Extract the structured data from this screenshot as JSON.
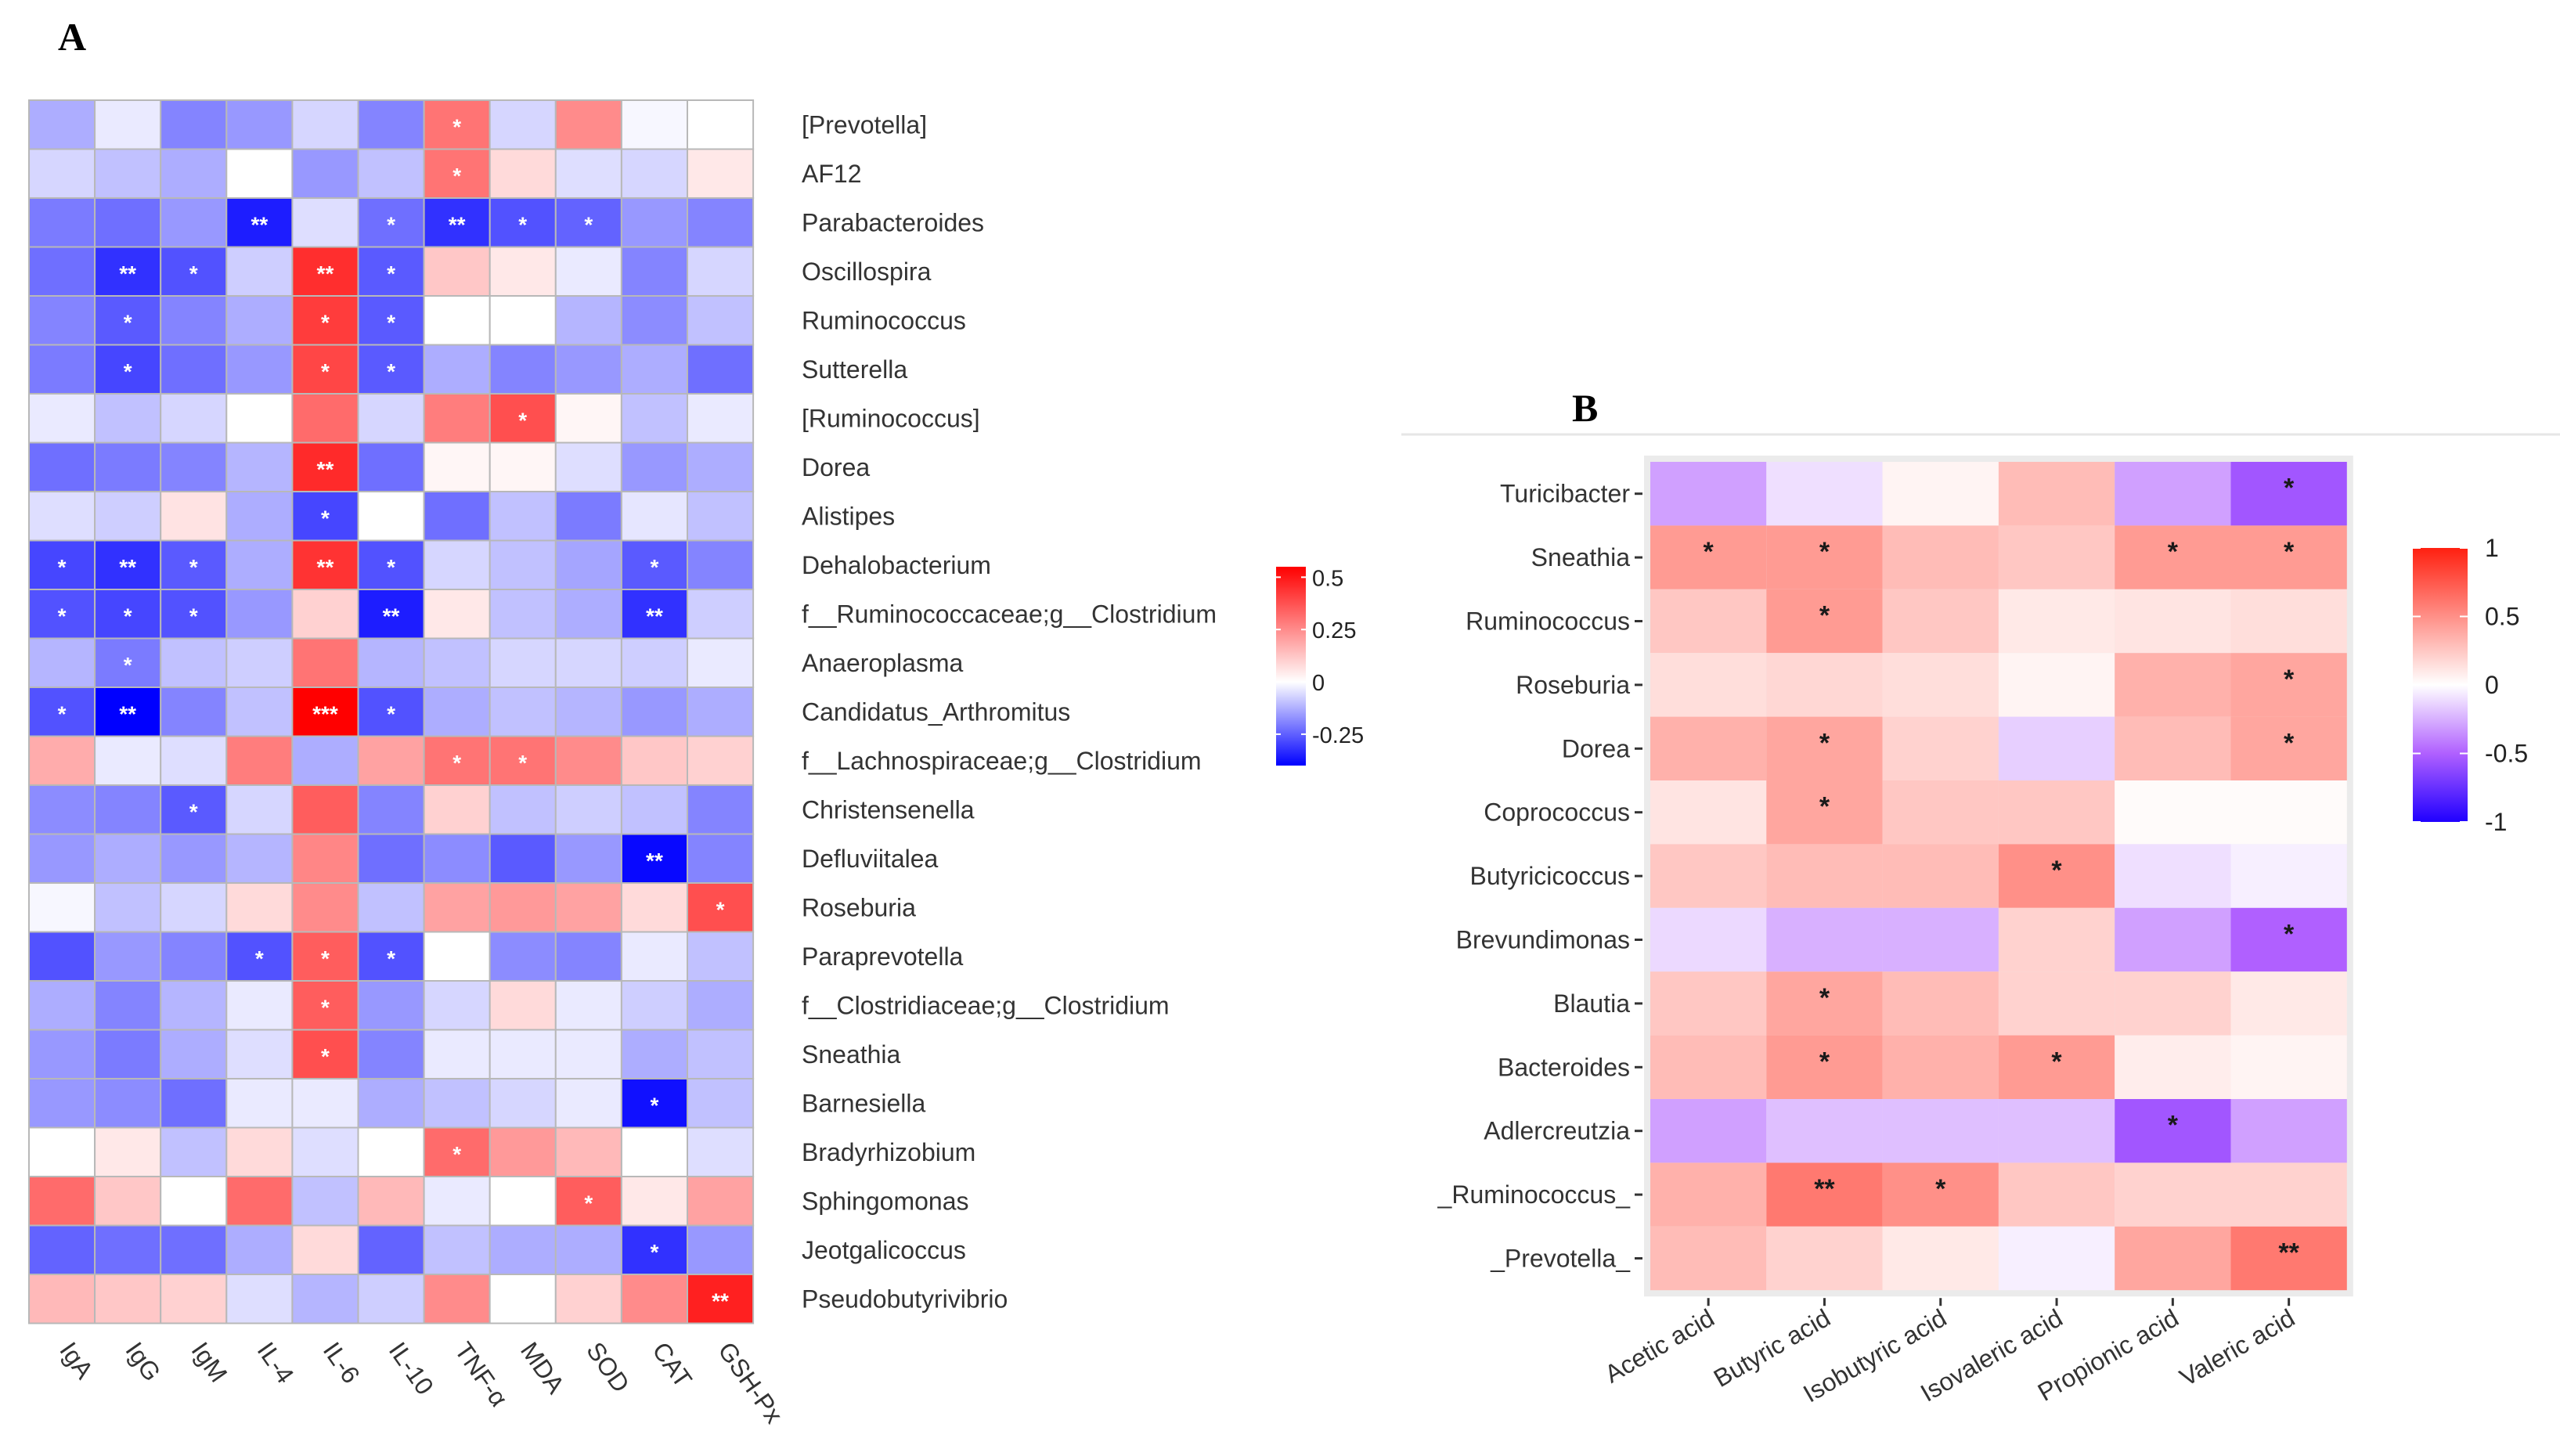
{
  "panels": [
    "A",
    "B"
  ],
  "chart_data": [
    {
      "type": "heatmap",
      "panel": "A",
      "x_labels": [
        "IgA",
        "IgG",
        "IgM",
        "IL-4",
        "IL-6",
        "IL-10",
        "TNF-α",
        "MDA",
        "SOD",
        "CAT",
        "GSH-Px"
      ],
      "y_labels": [
        "[Prevotella]",
        "AF12",
        "Parabacteroides",
        "Oscillospira",
        "Ruminococcus",
        "Sutterella",
        "[Ruminococcus]",
        "Dorea",
        "Alistipes",
        "Dehalobacterium",
        "f__Ruminococcaceae;g__Clostridium",
        "Anaeroplasma",
        "Candidatus_Arthromitus",
        "f__Lachnospiraceae;g__Clostridium",
        "Christensenella",
        "Defluviitalea",
        "Roseburia",
        "Paraprevotella",
        "f__Clostridiaceae;g__Clostridium",
        "Sneathia",
        "Barnesiella",
        "Bradyrhizobium",
        "Sphingomonas",
        "Jeotgalicoccus",
        "Pseudobutyrivibrio"
      ],
      "values": [
        [
          -0.2,
          -0.05,
          -0.3,
          -0.25,
          -0.1,
          -0.3,
          0.3,
          -0.1,
          0.25,
          -0.02,
          0.0
        ],
        [
          -0.1,
          -0.15,
          -0.2,
          0.0,
          -0.25,
          -0.15,
          0.3,
          0.08,
          -0.08,
          -0.1,
          0.05
        ],
        [
          -0.32,
          -0.35,
          -0.25,
          -0.55,
          -0.08,
          -0.35,
          -0.5,
          -0.42,
          -0.38,
          -0.25,
          -0.3
        ],
        [
          -0.35,
          -0.5,
          -0.42,
          -0.12,
          0.45,
          -0.4,
          0.12,
          0.05,
          -0.05,
          -0.3,
          -0.1
        ],
        [
          -0.3,
          -0.4,
          -0.3,
          -0.2,
          0.42,
          -0.4,
          0.0,
          0.0,
          -0.18,
          -0.28,
          -0.15
        ],
        [
          -0.32,
          -0.45,
          -0.35,
          -0.25,
          0.4,
          -0.4,
          -0.2,
          -0.3,
          -0.25,
          -0.2,
          -0.35
        ],
        [
          -0.05,
          -0.15,
          -0.1,
          0.0,
          0.32,
          -0.1,
          0.28,
          0.38,
          0.02,
          -0.15,
          -0.05
        ],
        [
          -0.35,
          -0.32,
          -0.3,
          -0.18,
          0.46,
          -0.35,
          0.02,
          0.02,
          -0.08,
          -0.25,
          -0.2
        ],
        [
          -0.08,
          -0.12,
          0.06,
          -0.2,
          -0.45,
          0.0,
          -0.35,
          -0.15,
          -0.32,
          -0.06,
          -0.15
        ],
        [
          -0.45,
          -0.5,
          -0.4,
          -0.2,
          0.44,
          -0.42,
          -0.1,
          -0.15,
          -0.22,
          -0.4,
          -0.3
        ],
        [
          -0.42,
          -0.45,
          -0.42,
          -0.25,
          0.1,
          -0.55,
          0.05,
          -0.15,
          -0.2,
          -0.5,
          -0.12
        ],
        [
          -0.18,
          -0.32,
          -0.15,
          -0.12,
          0.3,
          -0.18,
          -0.15,
          -0.1,
          -0.1,
          -0.12,
          -0.05
        ],
        [
          -0.42,
          -0.62,
          -0.3,
          -0.15,
          0.68,
          -0.42,
          -0.2,
          -0.15,
          -0.18,
          -0.25,
          -0.2
        ],
        [
          0.18,
          -0.05,
          -0.08,
          0.28,
          -0.2,
          0.2,
          0.3,
          0.3,
          0.25,
          0.12,
          0.1
        ],
        [
          -0.28,
          -0.3,
          -0.4,
          -0.1,
          0.35,
          -0.3,
          0.1,
          -0.15,
          -0.12,
          -0.15,
          -0.3
        ],
        [
          -0.25,
          -0.2,
          -0.25,
          -0.18,
          0.26,
          -0.35,
          -0.28,
          -0.4,
          -0.25,
          -0.6,
          -0.3
        ],
        [
          -0.02,
          -0.15,
          -0.1,
          0.08,
          0.25,
          -0.15,
          0.2,
          0.22,
          0.2,
          0.08,
          0.38
        ],
        [
          -0.42,
          -0.25,
          -0.3,
          -0.42,
          0.35,
          -0.42,
          0.0,
          -0.28,
          -0.3,
          -0.05,
          -0.15
        ],
        [
          -0.2,
          -0.3,
          -0.18,
          -0.05,
          0.35,
          -0.25,
          -0.1,
          0.08,
          -0.05,
          -0.12,
          -0.2
        ],
        [
          -0.25,
          -0.32,
          -0.2,
          -0.08,
          0.38,
          -0.3,
          -0.05,
          -0.05,
          -0.05,
          -0.2,
          -0.15
        ],
        [
          -0.25,
          -0.28,
          -0.35,
          -0.05,
          -0.05,
          -0.2,
          -0.15,
          -0.1,
          -0.05,
          -0.58,
          -0.15
        ],
        [
          0.0,
          0.05,
          -0.15,
          0.08,
          -0.08,
          0.0,
          0.32,
          0.22,
          0.15,
          0.0,
          -0.08
        ],
        [
          0.32,
          0.12,
          0.0,
          0.32,
          -0.15,
          0.15,
          -0.05,
          0.0,
          0.35,
          0.05,
          0.2
        ],
        [
          -0.38,
          -0.35,
          -0.35,
          -0.2,
          0.08,
          -0.38,
          -0.15,
          -0.2,
          -0.2,
          -0.5,
          -0.25
        ],
        [
          0.15,
          0.12,
          0.1,
          -0.08,
          -0.18,
          -0.12,
          0.25,
          0.0,
          0.1,
          0.25,
          0.48
        ]
      ],
      "annotations": [
        [
          "",
          "",
          "",
          "",
          "",
          "",
          "*",
          "",
          "",
          "",
          ""
        ],
        [
          "",
          "",
          "",
          "",
          "",
          "",
          "*",
          "",
          "",
          "",
          ""
        ],
        [
          "",
          "",
          "",
          "**",
          "",
          "*",
          "**",
          "*",
          "*",
          "",
          ""
        ],
        [
          "",
          "**",
          "*",
          "",
          "**",
          "*",
          "",
          "",
          "",
          "",
          ""
        ],
        [
          "",
          "*",
          "",
          "",
          "*",
          "*",
          "",
          "",
          "",
          "",
          ""
        ],
        [
          "",
          "*",
          "",
          "",
          "*",
          "*",
          "",
          "",
          "",
          "",
          ""
        ],
        [
          "",
          "",
          "",
          "",
          "",
          "",
          "",
          "*",
          "",
          "",
          ""
        ],
        [
          "",
          "",
          "",
          "",
          "**",
          "",
          "",
          "",
          "",
          "",
          ""
        ],
        [
          "",
          "",
          "",
          "",
          "*",
          "",
          "",
          "",
          "",
          "",
          ""
        ],
        [
          "*",
          "**",
          "*",
          "",
          "**",
          "*",
          "",
          "",
          "",
          "*",
          ""
        ],
        [
          "*",
          "*",
          "*",
          "",
          "",
          "**",
          "",
          "",
          "",
          "**",
          ""
        ],
        [
          "",
          "*",
          "",
          "",
          "",
          "",
          "",
          "",
          "",
          "",
          ""
        ],
        [
          "*",
          "**",
          "",
          "",
          "***",
          "*",
          "",
          "",
          "",
          "",
          ""
        ],
        [
          "",
          "",
          "",
          "",
          "",
          "",
          "*",
          "*",
          "",
          "",
          ""
        ],
        [
          "",
          "",
          "*",
          "",
          "",
          "",
          "",
          "",
          "",
          "",
          ""
        ],
        [
          "",
          "",
          "",
          "",
          "",
          "",
          "",
          "",
          "",
          "**",
          ""
        ],
        [
          "",
          "",
          "",
          "",
          "",
          "",
          "",
          "",
          "",
          "",
          "*"
        ],
        [
          "",
          "",
          "",
          "*",
          "*",
          "*",
          "",
          "",
          "",
          "",
          ""
        ],
        [
          "",
          "",
          "",
          "",
          "*",
          "",
          "",
          "",
          "",
          "",
          ""
        ],
        [
          "",
          "",
          "",
          "",
          "*",
          "",
          "",
          "",
          "",
          "",
          ""
        ],
        [
          "",
          "",
          "",
          "",
          "",
          "",
          "",
          "",
          "",
          "*",
          ""
        ],
        [
          "",
          "",
          "",
          "",
          "",
          "",
          "*",
          "",
          "",
          "",
          ""
        ],
        [
          "",
          "",
          "",
          "",
          "",
          "",
          "",
          "",
          "*",
          "",
          ""
        ],
        [
          "",
          "",
          "",
          "",
          "",
          "",
          "",
          "",
          "",
          "*",
          ""
        ],
        [
          "",
          "",
          "",
          "",
          "",
          "",
          "",
          "",
          "",
          "",
          "**"
        ]
      ],
      "colorbar": {
        "ticks": [
          0.5,
          0.25,
          0,
          -0.25
        ],
        "tick_labels": [
          "0.5",
          "0.25",
          "0",
          "-0.25"
        ],
        "range": [
          -0.4,
          0.55
        ]
      },
      "colors": {
        "negative": "#0000ff",
        "zero": "#ffffff",
        "positive": "#ff0000"
      }
    },
    {
      "type": "heatmap",
      "panel": "B",
      "x_labels": [
        "Acetic acid",
        "Butyric acid",
        "Isobutyric acid",
        "Isovaleric acid",
        "Propionic acid",
        "Valeric acid"
      ],
      "y_labels": [
        "Turicibacter",
        "Sneathia",
        "Ruminococcus",
        "Roseburia",
        "Dorea",
        "Coprococcus",
        "Butyricicoccus",
        "Brevundimonas",
        "Blautia",
        "Bacteroides",
        "Adlercreutzia",
        "_Ruminococcus_",
        "_Prevotella_"
      ],
      "values": [
        [
          -0.3,
          -0.1,
          0.05,
          0.3,
          -0.3,
          -0.55
        ],
        [
          0.45,
          0.45,
          0.3,
          0.25,
          0.45,
          0.45
        ],
        [
          0.25,
          0.45,
          0.25,
          0.1,
          0.12,
          0.15
        ],
        [
          0.15,
          0.18,
          0.15,
          0.05,
          0.35,
          0.4
        ],
        [
          0.35,
          0.4,
          0.2,
          -0.15,
          0.3,
          0.4
        ],
        [
          0.12,
          0.4,
          0.25,
          0.25,
          0.02,
          0.02
        ],
        [
          0.25,
          0.3,
          0.3,
          0.5,
          -0.1,
          -0.05
        ],
        [
          -0.12,
          -0.25,
          -0.25,
          0.2,
          -0.3,
          -0.5
        ],
        [
          0.25,
          0.4,
          0.3,
          0.2,
          0.2,
          0.1
        ],
        [
          0.3,
          0.45,
          0.35,
          0.45,
          0.08,
          0.05
        ],
        [
          -0.3,
          -0.2,
          -0.2,
          -0.2,
          -0.55,
          -0.3
        ],
        [
          0.35,
          0.6,
          0.5,
          0.25,
          0.2,
          0.2
        ],
        [
          0.3,
          0.2,
          0.1,
          -0.05,
          0.4,
          0.6
        ]
      ],
      "annotations": [
        [
          "",
          "",
          "",
          "",
          "",
          "*"
        ],
        [
          "*",
          "*",
          "",
          "",
          "*",
          "*"
        ],
        [
          "",
          "*",
          "",
          "",
          "",
          ""
        ],
        [
          "",
          "",
          "",
          "",
          "",
          "*"
        ],
        [
          "",
          "*",
          "",
          "",
          "",
          "*"
        ],
        [
          "",
          "*",
          "",
          "",
          "",
          ""
        ],
        [
          "",
          "",
          "",
          "*",
          "",
          ""
        ],
        [
          "",
          "",
          "",
          "",
          "",
          "*"
        ],
        [
          "",
          "*",
          "",
          "",
          "",
          ""
        ],
        [
          "",
          "*",
          "",
          "*",
          "",
          ""
        ],
        [
          "",
          "",
          "",
          "",
          "*",
          ""
        ],
        [
          "",
          "**",
          "*",
          "",
          "",
          ""
        ],
        [
          "",
          "",
          "",
          "",
          "",
          "**"
        ]
      ],
      "colorbar": {
        "ticks": [
          1,
          0.5,
          0,
          -0.5,
          -1
        ],
        "tick_labels": [
          "1",
          "0.5",
          "0",
          "-0.5",
          "-1"
        ],
        "range": [
          -1,
          1
        ]
      },
      "colors": {
        "negative": "#2000ff",
        "mid_negative": "#b060ff",
        "zero": "#ffffff",
        "positive": "#ff2010"
      }
    }
  ]
}
